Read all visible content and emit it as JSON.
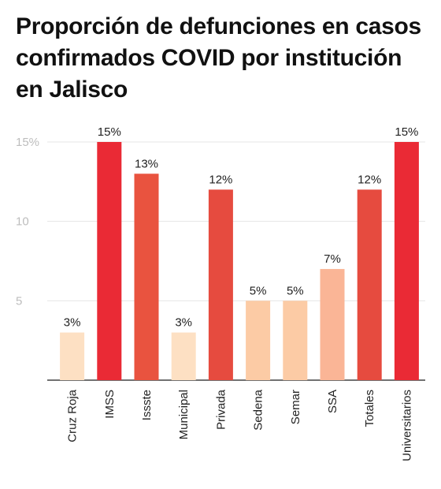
{
  "chart_data": {
    "type": "bar",
    "title": "Proporción de defunciones en casos confirmados COVID por institución en Jalisco",
    "categories": [
      "Cruz Roja",
      "IMSS",
      "Issste",
      "Municipal",
      "Privada",
      "Sedena",
      "Semar",
      "SSA",
      "Totales",
      "Universitarios"
    ],
    "values": [
      3,
      15,
      13,
      3,
      12,
      5,
      5,
      7,
      12,
      15
    ],
    "value_labels": [
      "3%",
      "15%",
      "13%",
      "3%",
      "12%",
      "5%",
      "5%",
      "7%",
      "12%",
      "15%"
    ],
    "y_ticks": [
      {
        "value": 5,
        "label": "5"
      },
      {
        "value": 10,
        "label": "10"
      },
      {
        "value": 15,
        "label": "15%"
      }
    ],
    "ylim": [
      0,
      15
    ],
    "grid": true,
    "colors": [
      "#fde0c3",
      "#ea2a35",
      "#e9533f",
      "#fde0c3",
      "#e64b3f",
      "#fccba5",
      "#fccba5",
      "#fab596",
      "#e64b3f",
      "#ea2a35"
    ]
  }
}
